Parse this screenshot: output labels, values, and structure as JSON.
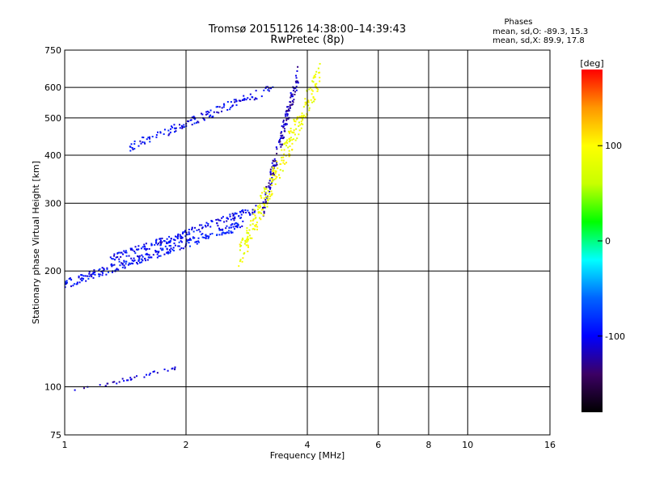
{
  "chart_data": {
    "type": "scatter",
    "title": "Tromsø 20151126 14:38:00–14:39:43",
    "subtitle": "RwPretec (8p)",
    "xlabel": "Frequency [MHz]",
    "ylabel": "Stationary phase Virtual Height [km]",
    "x_scale": "log",
    "y_scale": "log",
    "xlim": [
      1,
      16
    ],
    "ylim": [
      75,
      750
    ],
    "x_ticks": [
      1,
      2,
      4,
      6,
      8,
      10,
      16
    ],
    "y_ticks": [
      75,
      100,
      200,
      300,
      400,
      500,
      600,
      750
    ],
    "vertical_gridlines": [
      1,
      2,
      4,
      6,
      8,
      10,
      16
    ],
    "horizontal_gridlines": [
      100,
      200,
      300,
      400,
      500,
      600
    ],
    "stats": {
      "heading": "Phases",
      "line_o": "mean, sd,O: -89.3, 15.3",
      "line_x": "mean, sd,X: 89.9, 17.8"
    },
    "colorbar": {
      "label": "[deg]",
      "range": [
        -180,
        180
      ],
      "ticks": [
        -100,
        0,
        100
      ],
      "colors": [
        "#000000",
        "#3c0064",
        "#0000ff",
        "#0064ff",
        "#00ffff",
        "#00ff00",
        "#c8ff00",
        "#ffff00",
        "#ff9600",
        "#ff0000"
      ]
    },
    "clusters": [
      {
        "name": "O-trace lower branch",
        "x_range": [
          1.0,
          2.8
        ],
        "y_from": 185,
        "y_to": 265,
        "phase": -95,
        "count": 260
      },
      {
        "name": "O-trace mid band",
        "x_range": [
          1.3,
          3.0
        ],
        "y_from": 215,
        "y_to": 290,
        "phase": -100,
        "count": 180
      },
      {
        "name": "O-trace upper band",
        "x_range": [
          1.45,
          3.3
        ],
        "y_from": 420,
        "y_to": 600,
        "phase": -100,
        "count": 140
      },
      {
        "name": "O-trace cusp",
        "x_range": [
          3.1,
          3.8
        ],
        "y_from": 290,
        "y_to": 650,
        "phase": -120,
        "count": 150
      },
      {
        "name": "X-trace",
        "x_range": [
          2.7,
          4.3
        ],
        "y_from": 215,
        "y_to": 650,
        "phase": 90,
        "count": 260
      },
      {
        "name": "Sporadic E",
        "x_range": [
          1.05,
          1.9
        ],
        "y_from": 97,
        "y_to": 112,
        "phase": -110,
        "count": 35
      }
    ]
  }
}
